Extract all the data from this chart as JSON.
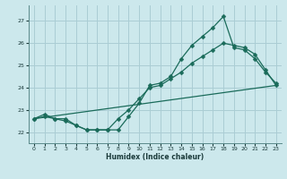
{
  "xlabel": "Humidex (Indice chaleur)",
  "bg_color": "#cce8ec",
  "grid_color": "#aacdd4",
  "line_color": "#1a6b5a",
  "xlim": [
    -0.5,
    23.5
  ],
  "ylim": [
    21.5,
    27.7
  ],
  "yticks": [
    22,
    23,
    24,
    25,
    26,
    27
  ],
  "xticks": [
    0,
    1,
    2,
    3,
    4,
    5,
    6,
    7,
    8,
    9,
    10,
    11,
    12,
    13,
    14,
    15,
    16,
    17,
    18,
    19,
    20,
    21,
    22,
    23
  ],
  "series1": {
    "x": [
      0,
      1,
      2,
      3,
      4,
      5,
      6,
      7,
      8,
      9,
      10,
      11,
      12,
      13,
      14,
      15,
      16,
      17,
      18,
      19,
      20,
      21,
      22,
      23
    ],
    "y": [
      22.6,
      22.8,
      22.6,
      22.6,
      22.3,
      22.1,
      22.1,
      22.1,
      22.1,
      22.7,
      23.3,
      24.1,
      24.2,
      24.5,
      25.3,
      25.9,
      26.3,
      26.7,
      27.2,
      25.8,
      25.7,
      25.3,
      24.7,
      24.2
    ]
  },
  "series2": {
    "x": [
      0,
      1,
      2,
      3,
      4,
      5,
      6,
      7,
      8,
      9,
      10,
      11,
      12,
      13,
      14,
      15,
      16,
      17,
      18,
      19,
      20,
      21,
      22,
      23
    ],
    "y": [
      22.6,
      22.7,
      22.6,
      22.5,
      22.3,
      22.1,
      22.1,
      22.1,
      22.6,
      23.0,
      23.5,
      24.0,
      24.1,
      24.4,
      24.7,
      25.1,
      25.4,
      25.7,
      26.0,
      25.9,
      25.8,
      25.5,
      24.8,
      24.1
    ]
  },
  "series3_linear": {
    "x": [
      0,
      23
    ],
    "y": [
      22.6,
      24.1
    ]
  }
}
